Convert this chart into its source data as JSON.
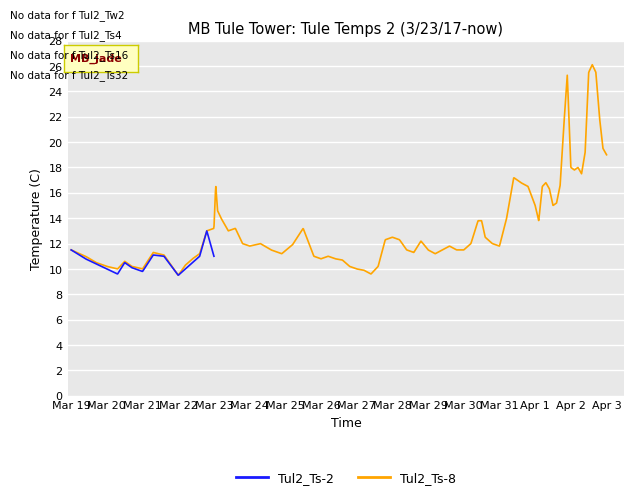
{
  "title": "MB Tule Tower: Tule Temps 2 (3/23/17-now)",
  "xlabel": "Time",
  "ylabel": "Temperature (C)",
  "ylim": [
    0,
    28
  ],
  "yticks": [
    0,
    2,
    4,
    6,
    8,
    10,
    12,
    14,
    16,
    18,
    20,
    22,
    24,
    26,
    28
  ],
  "no_data_messages": [
    "No data for f Tul2_Tw2",
    "No data for f Tul2_Ts4",
    "No data for f Tul2_Ts16",
    "No data for f Tul2_Ts32"
  ],
  "legend_entries": [
    {
      "label": "Tul2_Ts-2",
      "color": "#1a1aff",
      "linestyle": "-"
    },
    {
      "label": "Tul2_Ts-8",
      "color": "#FFA500",
      "linestyle": "-"
    }
  ],
  "bg_color": "#e8e8e8",
  "grid_color": "white",
  "xtick_labels": [
    "Mar 19",
    "Mar 20",
    "Mar 21",
    "Mar 22",
    "Mar 23",
    "Mar 24",
    "Mar 25",
    "Mar 26",
    "Mar 27",
    "Mar 28",
    "Mar 29",
    "Mar 30",
    "Mar 31",
    "Apr 1",
    "Apr 2",
    "Apr 3"
  ],
  "tooltip_text": "MB_jade",
  "tooltip_color": "#ffffc0",
  "tooltip_border": "#cccc00",
  "tooltip_text_color": "darkred"
}
